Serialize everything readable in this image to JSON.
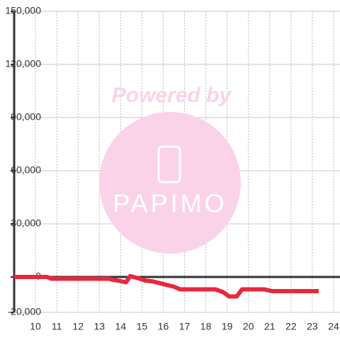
{
  "chart_data": {
    "type": "line",
    "watermark": {
      "title": "Powered by",
      "brand": "PAPIMO"
    },
    "x": [
      9.0,
      10.55,
      10.75,
      13.45,
      13.6,
      13.85,
      14.25,
      14.45,
      14.9,
      15.15,
      15.5,
      16.0,
      16.5,
      16.8,
      18.45,
      18.8,
      19.1,
      19.45,
      19.7,
      20.75,
      21.1,
      23.3
    ],
    "series": [
      {
        "color": "#e8283c",
        "values": [
          0,
          0,
          -1000,
          -1000,
          -1500,
          -2000,
          -3000,
          500,
          -1000,
          -2000,
          -2500,
          -4000,
          -5500,
          -7000,
          -7000,
          -8500,
          -11000,
          -11000,
          -7000,
          -7000,
          -8000,
          -8000
        ]
      }
    ],
    "xlim": [
      9,
      24.3
    ],
    "xticks": [
      10,
      11,
      12,
      13,
      14,
      15,
      16,
      17,
      18,
      19,
      20,
      21,
      22,
      23,
      24
    ],
    "ylim": [
      -20000,
      150000
    ],
    "yticks": [
      {
        "value": -20000,
        "label": "-20,000"
      },
      0,
      {
        "value": 30000,
        "label": "30,000"
      },
      {
        "value": 60000,
        "label": "60,000"
      },
      {
        "value": 90000,
        "label": "90,000"
      },
      {
        "value": 120000,
        "label": "120,000"
      },
      {
        "value": 150000,
        "label": "150,000"
      }
    ],
    "grid": true
  }
}
